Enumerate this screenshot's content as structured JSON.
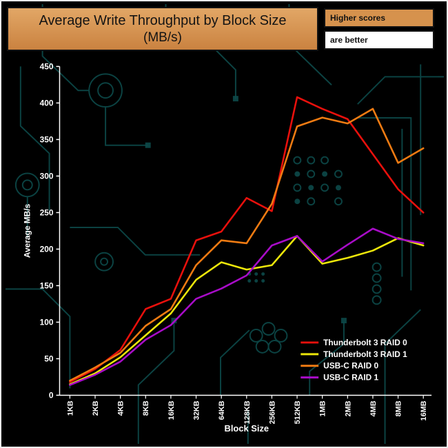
{
  "title": {
    "line1": "Average Write Throughput by Block Size",
    "line2": "(MB/s)"
  },
  "note": {
    "line1": "Higher scores",
    "line2": "are better"
  },
  "colors": {
    "background": "#000000",
    "circuit": "#0d4a4a",
    "axis": "#ffffff",
    "title_box": "#d6924d",
    "note_white": "#ffffff"
  },
  "chart_data": {
    "type": "line",
    "title": "Average Write Throughput by Block Size (MB/s)",
    "xlabel": "Block Size",
    "ylabel": "Average MB/s",
    "ylim": [
      0,
      450
    ],
    "ytick_step": 50,
    "grid": false,
    "legend_position": "lower-right",
    "categories": [
      "1KB",
      "2KB",
      "4KB",
      "8KB",
      "16KB",
      "32KB",
      "64KB",
      "128KB",
      "256KB",
      "512KB",
      "1MB",
      "2MB",
      "4MB",
      "8MB",
      "16MB"
    ],
    "series": [
      {
        "name": "Thunderbolt 3 RAID 0",
        "color": "#e8100c",
        "values": [
          18,
          36,
          62,
          118,
          132,
          212,
          224,
          270,
          252,
          408,
          392,
          378,
          330,
          282,
          250
        ]
      },
      {
        "name": "Thunderbolt 3 RAID 1",
        "color": "#ece60a",
        "values": [
          15,
          30,
          52,
          82,
          112,
          158,
          182,
          172,
          178,
          218,
          180,
          188,
          198,
          215,
          205
        ]
      },
      {
        "name": "USB-C RAID 0",
        "color": "#f07b12",
        "values": [
          20,
          38,
          58,
          95,
          118,
          178,
          212,
          208,
          262,
          368,
          380,
          372,
          392,
          318,
          338
        ]
      },
      {
        "name": "USB-C RAID 1",
        "color": "#a80cc8",
        "values": [
          14,
          28,
          46,
          76,
          96,
          132,
          146,
          164,
          205,
          218,
          183,
          206,
          228,
          214,
          208
        ]
      }
    ]
  }
}
